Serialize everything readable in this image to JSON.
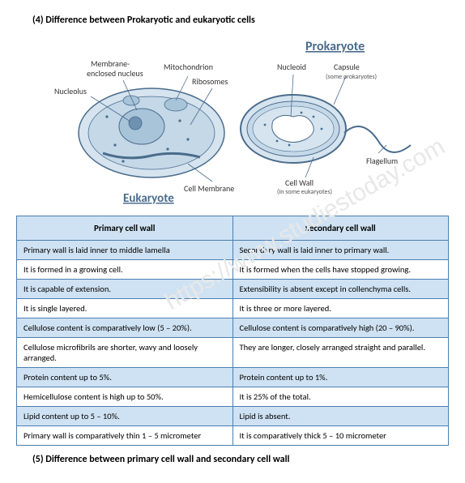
{
  "heading_top": "(4) Difference between Prokaryotic and eukaryotic cells",
  "heading_bottom": "(5) Difference between primary cell wall and secondary cell wall",
  "watermark": "https://www.studiestoday.com",
  "diagram": {
    "title_prokaryote": "Prokaryote",
    "title_eukaryote": "Eukaryote",
    "labels": {
      "membrane_nucleus": "Membrane-\nenclosed nucleus",
      "nucleolus": "Nucleolus",
      "mitochondrion": "Mitochondrion",
      "ribosomes": "Ribosomes",
      "nucleoid": "Nucleoid",
      "capsule": "Capsule",
      "capsule_sub": "(some prokaryotes)",
      "flagellum": "Flagellum",
      "cell_membrane": "Cell Membrane",
      "cell_wall": "Cell Wall",
      "cell_wall_sub": "(in some eukaryotes)"
    },
    "colors": {
      "outline": "#4a6c8c",
      "fill_light": "#d6e4ef",
      "fill_mid": "#a8c4d9",
      "fill_dark": "#6e92b0",
      "text": "#333333",
      "heading": "#4a6c8c"
    }
  },
  "table": {
    "header_bg": "#cfe2f3",
    "border_color": "#4a7fb0",
    "col1_header": "Primary cell wall",
    "col2_header": "Secondary cell wall",
    "rows": [
      {
        "c1": "Primary wall is laid inner to middle lamella",
        "c2": "Secondary wall is laid inner to primary wall."
      },
      {
        "c1": "It is formed in a growing cell.",
        "c2": "It is formed when the cells have stopped growing."
      },
      {
        "c1": "It is capable of extension.",
        "c2": "Extensibility is absent except in collenchyma cells."
      },
      {
        "c1": "It is single layered.",
        "c2": "It is three or more layered."
      },
      {
        "c1": "Cellulose content is comparatively low (5 – 20%).",
        "c2": "Cellulose content is comparatively high (20 – 90%)."
      },
      {
        "c1": "Cellulose microfibrils are shorter, wavy and loosely arranged.",
        "c2": "They are longer, closely arranged straight and parallel."
      },
      {
        "c1": "Protein content up to 5%.",
        "c2": "Protein content up to 1%."
      },
      {
        "c1": "Hemicellulose content is high up to 50%.",
        "c2": "It is 25% of the total."
      },
      {
        "c1": "Lipid content up to 5 – 10%.",
        "c2": "Lipid is absent."
      },
      {
        "c1": "Primary wall is comparatively thin 1 – 5 micrometer",
        "c2": "It is comparatively thick 5 – 10 micrometer"
      }
    ]
  }
}
